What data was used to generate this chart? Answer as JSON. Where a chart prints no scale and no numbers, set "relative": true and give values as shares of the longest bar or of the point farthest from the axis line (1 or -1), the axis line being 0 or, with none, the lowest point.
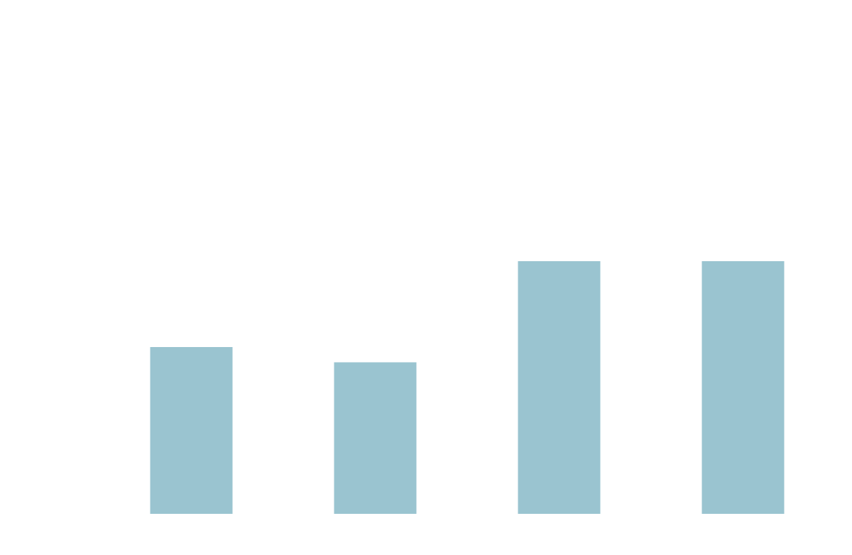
{
  "chart_data": {
    "type": "bar",
    "relative": true,
    "categories": [
      null,
      null,
      null,
      null
    ],
    "values": [
      0.66,
      0.6,
      1,
      1
    ],
    "color": "#9ac4d0"
  }
}
